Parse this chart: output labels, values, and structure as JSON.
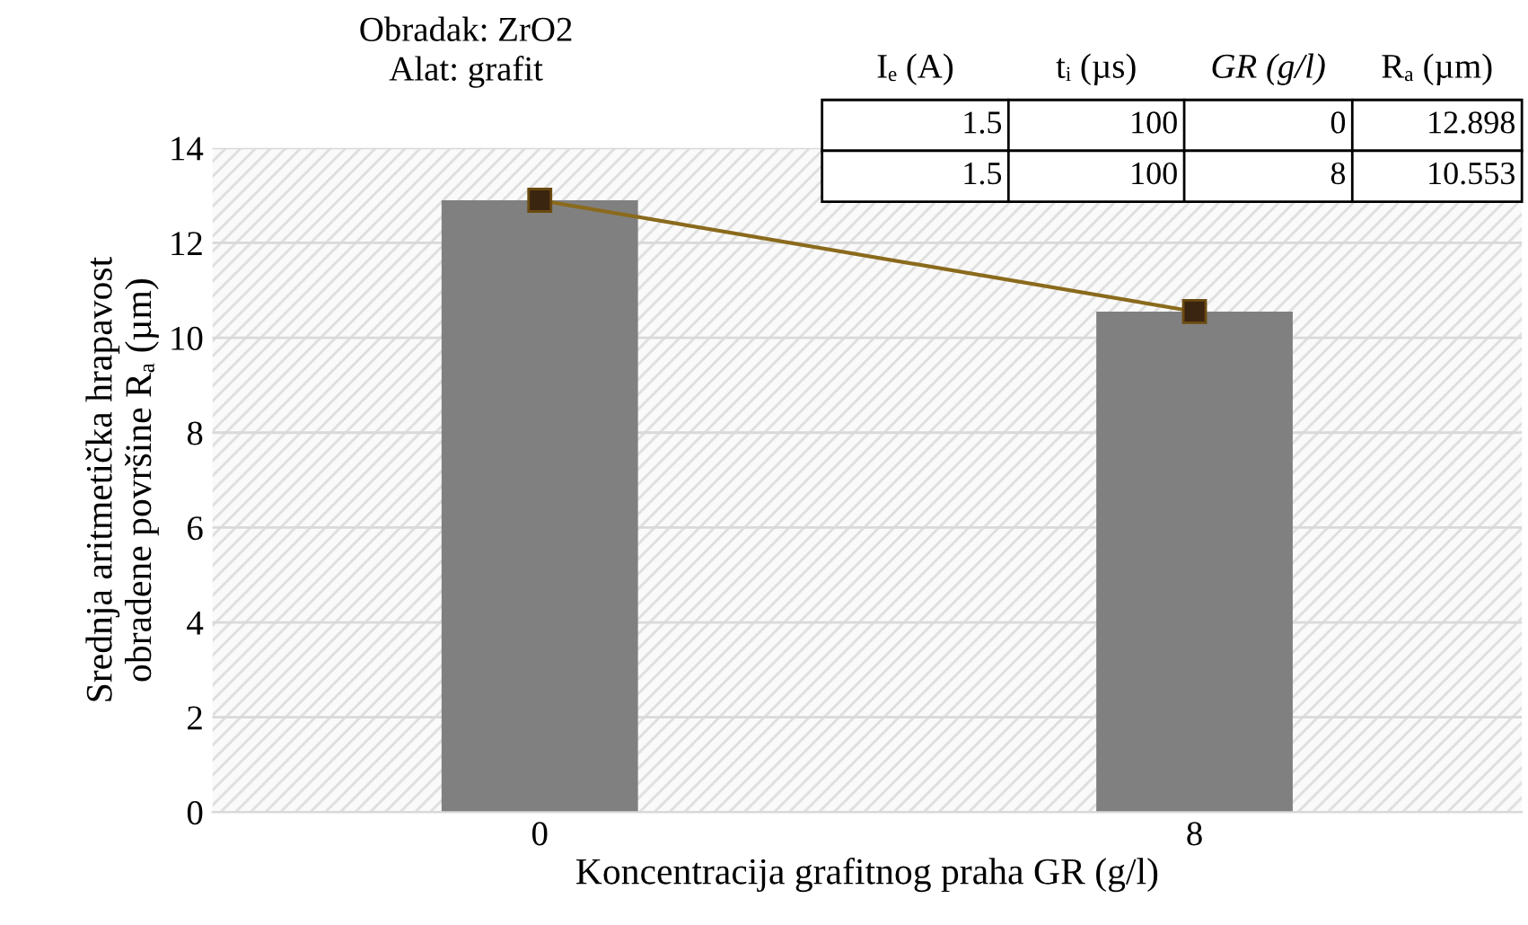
{
  "chart_data": {
    "type": "bar",
    "title": "Obradak: ZrO2\nAlat: grafit",
    "xlabel": "Koncentracija grafitnog praha GR (g/l)",
    "ylabel": "Srednja aritmetička hrapavost\nobradene površine Rₐ (µm)",
    "categories": [
      "0",
      "8"
    ],
    "series": [
      {
        "color": "#808080",
        "values": [
          12.898,
          10.553
        ]
      },
      {
        "type": "line",
        "color": "#8a6a1c",
        "marker": "square",
        "values": [
          12.898,
          10.553
        ]
      }
    ],
    "ylim": [
      0,
      14
    ],
    "yticks": [
      0,
      2,
      4,
      6,
      8,
      10,
      12,
      14
    ],
    "grid": "y",
    "annotations": [
      "Iₑ (A)",
      "tᵢ (µs)",
      "GR (g/l)",
      "Rₐ (µm)",
      "1.5",
      "100",
      "0",
      "12.898",
      "1.5",
      "100",
      "8",
      "10.553"
    ]
  }
}
